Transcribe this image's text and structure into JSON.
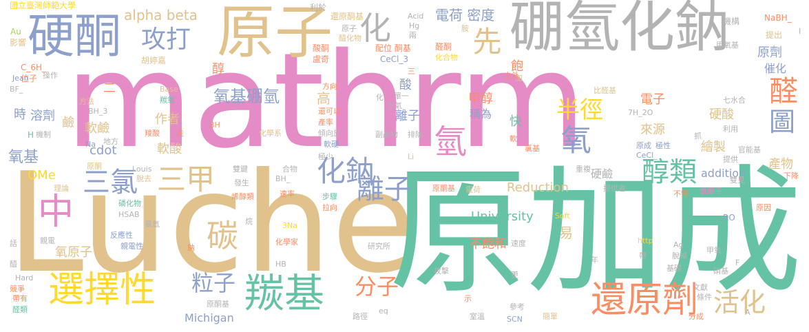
{
  "palette": {
    "pink": "#e58bc6",
    "tan": "#e2c28c",
    "green": "#66c2a5",
    "blue": "#8da0cb",
    "gray": "#b3b3b3",
    "orange": "#fc8d62",
    "yellow": "#ffd92f",
    "lime": "#a6d854"
  },
  "words": [
    {
      "text": "mathrm",
      "color": "pink"
    },
    {
      "text": "Luche",
      "color": "tan"
    },
    {
      "text": "原加成",
      "color": "green"
    },
    {
      "text": "硼氫化鈉",
      "color": "gray"
    },
    {
      "text": "原子",
      "color": "tan"
    },
    {
      "text": "硬酮",
      "color": "blue"
    },
    {
      "text": "攻打",
      "color": "blue"
    },
    {
      "text": "化",
      "color": "gray"
    },
    {
      "text": "先",
      "color": "tan"
    },
    {
      "text": "電荷 密度",
      "color": "blue"
    },
    {
      "text": "選擇性",
      "color": "yellow"
    },
    {
      "text": "羰基",
      "color": "green"
    },
    {
      "text": "三氯",
      "color": "blue"
    },
    {
      "text": "三甲",
      "color": "tan"
    },
    {
      "text": "中",
      "color": "pink"
    },
    {
      "text": "碳",
      "color": "tan"
    },
    {
      "text": "化鈉",
      "color": "blue"
    },
    {
      "text": "離子",
      "color": "blue"
    },
    {
      "text": "醇類",
      "color": "green"
    },
    {
      "text": "氧基硼氫",
      "color": "blue"
    },
    {
      "text": "半徑",
      "color": "yellow"
    },
    {
      "text": "氫",
      "color": "pink"
    },
    {
      "text": "氧",
      "color": "blue"
    },
    {
      "text": "醛",
      "color": "orange"
    },
    {
      "text": "圖",
      "color": "blue"
    },
    {
      "text": "還原劑",
      "color": "orange"
    },
    {
      "text": "活化",
      "color": "tan"
    },
    {
      "text": "分子",
      "color": "orange"
    },
    {
      "text": "粒子",
      "color": "blue"
    },
    {
      "text": "alpha beta",
      "color": "tan"
    },
    {
      "text": "國立臺灣師範大學",
      "color": "yellow"
    },
    {
      "text": "University",
      "color": "green"
    },
    {
      "text": "Reduction",
      "color": "tan"
    },
    {
      "text": "addition",
      "color": "blue"
    },
    {
      "text": "Michigan",
      "color": "blue"
    },
    {
      "text": "不飽和",
      "color": "orange"
    },
    {
      "text": "溶劑",
      "color": "blue"
    },
    {
      "text": "軟鹼",
      "color": "tan"
    },
    {
      "text": "軟酸",
      "color": "tan"
    },
    {
      "text": "氧基",
      "color": "blue"
    },
    {
      "text": "cdot",
      "color": "blue"
    },
    {
      "text": "OMe",
      "color": "yellow"
    },
    {
      "text": "作者",
      "color": "tan"
    },
    {
      "text": "電子",
      "color": "orange"
    },
    {
      "text": "硬酸",
      "color": "tan"
    },
    {
      "text": "來源",
      "color": "tan"
    },
    {
      "text": "繪製",
      "color": "tan"
    },
    {
      "text": "產物",
      "color": "tan"
    },
    {
      "text": "硬鹼",
      "color": "gray"
    },
    {
      "text": "甲醇",
      "color": "orange"
    },
    {
      "text": "稱為",
      "color": "blue"
    },
    {
      "text": "高",
      "color": "tan"
    },
    {
      "text": "酸",
      "color": "blue"
    },
    {
      "text": "離子",
      "color": "blue"
    },
    {
      "text": "快",
      "color": "green"
    },
    {
      "text": "飽",
      "color": "orange"
    },
    {
      "text": "易",
      "color": "tan"
    },
    {
      "text": "醇",
      "color": "orange"
    },
    {
      "text": "時",
      "color": "blue"
    },
    {
      "text": "鹼",
      "color": "tan"
    },
    {
      "text": "二",
      "color": "orange"
    },
    {
      "text": "原劑",
      "color": "blue"
    },
    {
      "text": "催化",
      "color": "blue"
    },
    {
      "text": "氧原子",
      "color": "tan"
    },
    {
      "text": "反應性",
      "color": "blue"
    },
    {
      "text": "親電性",
      "color": "blue"
    },
    {
      "text": "Au",
      "color": "lime"
    },
    {
      "text": "影響",
      "color": "tan"
    },
    {
      "text": "C_6H_",
      "color": "orange"
    },
    {
      "text": "位子",
      "color": "orange"
    },
    {
      "text": "Jean",
      "color": "blue"
    },
    {
      "text": "操作",
      "color": "gray"
    },
    {
      "text": "BF_",
      "color": "gray"
    },
    {
      "text": "H",
      "color": "green"
    },
    {
      "text": "機制",
      "color": "gray"
    },
    {
      "text": "胡婷嘉",
      "color": "tan"
    },
    {
      "text": "利於",
      "color": "gray"
    },
    {
      "text": "還原酮基",
      "color": "tan"
    },
    {
      "text": "Acid",
      "color": "gray"
    },
    {
      "text": "Hg",
      "color": "gray"
    },
    {
      "text": "兩",
      "color": "gray"
    },
    {
      "text": "NaBH_",
      "color": "orange"
    },
    {
      "text": "機構",
      "color": "gray"
    },
    {
      "text": "提出",
      "color": "tan"
    },
    {
      "text": "甲氧基",
      "color": "gray"
    },
    {
      "text": "原子",
      "color": "gray"
    },
    {
      "text": "醯化物",
      "color": "tan"
    },
    {
      "text": "配位 酮基",
      "color": "orange"
    },
    {
      "text": "醛酮",
      "color": "orange"
    },
    {
      "text": "化合物",
      "color": "yellow"
    },
    {
      "text": "酸酮",
      "color": "orange"
    },
    {
      "text": "盧奇",
      "color": "orange"
    },
    {
      "text": "CeCl_3",
      "color": "blue"
    },
    {
      "text": "Base",
      "color": "tan"
    },
    {
      "text": "方向",
      "color": "orange"
    },
    {
      "text": "單一",
      "color": "gray"
    },
    {
      "text": "比醛基",
      "color": "tan"
    },
    {
      "text": "七水合",
      "color": "gray"
    },
    {
      "text": "7H_2O",
      "color": "gray"
    },
    {
      "text": "羰氧",
      "color": "green"
    },
    {
      "text": "BH_3",
      "color": "gray"
    },
    {
      "text": "方法",
      "color": "tan"
    },
    {
      "text": "化學系",
      "color": "tan"
    },
    {
      "text": "傾向於",
      "color": "gray"
    },
    {
      "text": "地方",
      "color": "gray"
    },
    {
      "text": "羧酸",
      "color": "orange"
    },
    {
      "text": "BH",
      "color": "orange"
    },
    {
      "text": "產率",
      "color": "orange"
    },
    {
      "text": "還可以",
      "color": "orange"
    },
    {
      "text": "空氣",
      "color": "gray"
    },
    {
      "text": "副產物",
      "color": "gray"
    },
    {
      "text": "排除",
      "color": "gray"
    },
    {
      "text": "軟硬",
      "color": "blue"
    },
    {
      "text": "氯基",
      "color": "orange"
    },
    {
      "text": "原成",
      "color": "blue"
    },
    {
      "text": "極性",
      "color": "blue"
    },
    {
      "text": "CeCl_",
      "color": "blue"
    },
    {
      "text": "利用",
      "color": "gray"
    },
    {
      "text": "提供",
      "color": "gray"
    },
    {
      "text": "官能基",
      "color": "gray"
    },
    {
      "text": "重複",
      "color": "gray"
    },
    {
      "text": "雙鍵",
      "color": "gray"
    },
    {
      "text": "合物",
      "color": "gray"
    },
    {
      "text": "Louis",
      "color": "gray"
    },
    {
      "text": "發生",
      "color": "gray"
    },
    {
      "text": "BH_",
      "color": "gray"
    },
    {
      "text": "雙見",
      "color": "gray"
    },
    {
      "text": "提供者",
      "color": "gray"
    },
    {
      "text": "原酮基",
      "color": "orange"
    },
    {
      "text": "電荷",
      "color": "tan"
    },
    {
      "text": "氫原子",
      "color": "pink"
    },
    {
      "text": "不需",
      "color": "orange"
    },
    {
      "text": "原因",
      "color": "orange"
    },
    {
      "text": "RO",
      "color": "blue"
    },
    {
      "text": "Soft",
      "color": "yellow"
    },
    {
      "text": "烯醇類",
      "color": "orange"
    },
    {
      "text": "步驟",
      "color": "green"
    },
    {
      "text": "拉向",
      "color": "orange"
    },
    {
      "text": "速率",
      "color": "orange"
    },
    {
      "text": "理論",
      "color": "tan"
    },
    {
      "text": "脫去",
      "color": "tan"
    },
    {
      "text": "磷化物",
      "color": "green"
    },
    {
      "text": "HSAB",
      "color": "gray"
    },
    {
      "text": "氯氫",
      "color": "gray"
    },
    {
      "text": "3Na",
      "color": "yellow"
    },
    {
      "text": "研究所",
      "color": "gray"
    },
    {
      "text": "化學家",
      "color": "orange"
    },
    {
      "text": "速度",
      "color": "gray"
    },
    {
      "text": "http",
      "color": "yellow"
    },
    {
      "text": "脫掉",
      "color": "gray"
    },
    {
      "text": "Ag",
      "color": "gray"
    },
    {
      "text": "甲氧",
      "color": "gray"
    },
    {
      "text": "帶",
      "color": "gray"
    },
    {
      "text": "年",
      "color": "gray"
    },
    {
      "text": "HB",
      "color": "gray"
    },
    {
      "text": "攻擊",
      "color": "gray"
    },
    {
      "text": "更",
      "color": "gray"
    },
    {
      "text": "基礎",
      "color": "gray"
    },
    {
      "text": "硝基",
      "color": "gray"
    },
    {
      "text": "文獻",
      "color": "gray"
    },
    {
      "text": "條件",
      "color": "gray"
    },
    {
      "text": "Hard",
      "color": "gray"
    },
    {
      "text": "帶有",
      "color": "orange"
    },
    {
      "text": "醛類",
      "color": "green"
    },
    {
      "text": "原酮基",
      "color": "gray"
    },
    {
      "text": "路徑",
      "color": "gray"
    },
    {
      "text": "eq",
      "color": "gray"
    },
    {
      "text": "參考",
      "color": "gray"
    },
    {
      "text": "室溫",
      "color": "gray"
    },
    {
      "text": "SCN",
      "color": "blue"
    },
    {
      "text": "簡單",
      "color": "tan"
    },
    {
      "text": "分成",
      "color": "orange"
    },
    {
      "text": "示",
      "color": "orange"
    },
    {
      "text": "下降",
      "color": "orange"
    },
    {
      "text": "F",
      "color": "gray"
    },
    {
      "text": "A",
      "color": "gray"
    },
    {
      "text": "話",
      "color": "gray"
    },
    {
      "text": "競爭",
      "color": "orange"
    },
    {
      "text": "親電",
      "color": "gray"
    },
    {
      "text": "鈉",
      "color": "orange"
    },
    {
      "text": "烷",
      "color": "gray"
    },
    {
      "text": "走",
      "color": "orange"
    },
    {
      "text": "抓",
      "color": "gray"
    },
    {
      "text": "軟",
      "color": "orange"
    },
    {
      "text": "加",
      "color": "tan"
    },
    {
      "text": "之外",
      "color": "orange"
    },
    {
      "text": "三",
      "color": "orange"
    },
    {
      "text": "胺",
      "color": "tan"
    },
    {
      "text": "極少",
      "color": "gray"
    },
    {
      "text": "Li",
      "color": "tan"
    },
    {
      "text": "I",
      "color": "gray"
    },
    {
      "text": "Na",
      "color": "blue"
    },
    {
      "text": "化",
      "color": "gray"
    },
    {
      "text": "原酮",
      "color": "tan"
    },
    {
      "text": "醯",
      "color": "gray"
    }
  ]
}
